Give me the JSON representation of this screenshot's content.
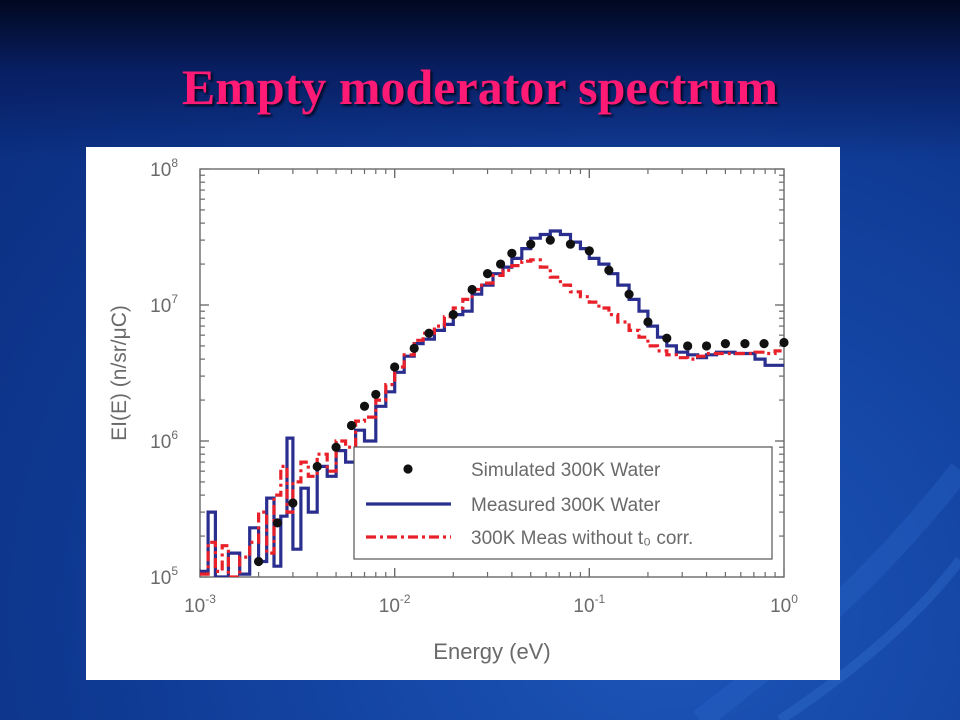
{
  "slide": {
    "title": "Empty moderator spectrum"
  },
  "colors": {
    "background": "#1445a4",
    "title": "#ff1a75",
    "simulated": "#111111",
    "measured": "#2a2f8f",
    "meas_no_corr": "#e8202a"
  },
  "chart_data": {
    "type": "line",
    "xlabel": "Energy (eV)",
    "ylabel": "EI(E) (n/sr/μC)",
    "xscale": "log",
    "yscale": "log",
    "xlim": [
      0.001,
      1
    ],
    "ylim": [
      100000,
      100000000
    ],
    "x_ticks": [
      {
        "base": "10",
        "exp": "-3"
      },
      {
        "base": "10",
        "exp": "-2"
      },
      {
        "base": "10",
        "exp": "-1"
      },
      {
        "base": "10",
        "exp": "0"
      }
    ],
    "y_ticks": [
      {
        "base": "10",
        "exp": "5"
      },
      {
        "base": "10",
        "exp": "6"
      },
      {
        "base": "10",
        "exp": "7"
      },
      {
        "base": "10",
        "exp": "8"
      }
    ],
    "legend_position": "bottom-right",
    "series": [
      {
        "name": "Simulated 300K Water",
        "style": "markers",
        "points": [
          [
            0.002,
            130000
          ],
          [
            0.0025,
            250000
          ],
          [
            0.003,
            350000
          ],
          [
            0.004,
            650000
          ],
          [
            0.005,
            900000
          ],
          [
            0.006,
            1300000
          ],
          [
            0.007,
            1800000
          ],
          [
            0.008,
            2200000
          ],
          [
            0.01,
            3500000
          ],
          [
            0.0126,
            4800000
          ],
          [
            0.015,
            6200000
          ],
          [
            0.02,
            8500000
          ],
          [
            0.025,
            13000000
          ],
          [
            0.03,
            17000000
          ],
          [
            0.035,
            20000000
          ],
          [
            0.04,
            24000000
          ],
          [
            0.05,
            28000000
          ],
          [
            0.063,
            30000000
          ],
          [
            0.08,
            28000000
          ],
          [
            0.1,
            25000000
          ],
          [
            0.126,
            18000000
          ],
          [
            0.16,
            12000000
          ],
          [
            0.2,
            7500000
          ],
          [
            0.25,
            5700000
          ],
          [
            0.32,
            5000000
          ],
          [
            0.4,
            5000000
          ],
          [
            0.5,
            5200000
          ],
          [
            0.63,
            5200000
          ],
          [
            0.79,
            5200000
          ],
          [
            1.0,
            5300000
          ]
        ]
      },
      {
        "name": "Measured 300K Water",
        "style": "step",
        "points": [
          [
            0.001,
            110000
          ],
          [
            0.0011,
            300000
          ],
          [
            0.0012,
            100000
          ],
          [
            0.0014,
            150000
          ],
          [
            0.0016,
            105000
          ],
          [
            0.0018,
            230000
          ],
          [
            0.002,
            130000
          ],
          [
            0.0022,
            380000
          ],
          [
            0.0024,
            120000
          ],
          [
            0.0026,
            280000
          ],
          [
            0.0028,
            1050000
          ],
          [
            0.003,
            160000
          ],
          [
            0.0033,
            450000
          ],
          [
            0.0036,
            300000
          ],
          [
            0.004,
            650000
          ],
          [
            0.0045,
            550000
          ],
          [
            0.005,
            850000
          ],
          [
            0.0056,
            700000
          ],
          [
            0.0063,
            1200000
          ],
          [
            0.007,
            1000000
          ],
          [
            0.008,
            1800000
          ],
          [
            0.009,
            2300000
          ],
          [
            0.01,
            3200000
          ],
          [
            0.0112,
            4200000
          ],
          [
            0.0126,
            5200000
          ],
          [
            0.014,
            5600000
          ],
          [
            0.016,
            6500000
          ],
          [
            0.018,
            7200000
          ],
          [
            0.02,
            8500000
          ],
          [
            0.0224,
            9000000
          ],
          [
            0.025,
            12000000
          ],
          [
            0.028,
            14000000
          ],
          [
            0.032,
            17000000
          ],
          [
            0.036,
            19000000
          ],
          [
            0.04,
            22000000
          ],
          [
            0.045,
            26000000
          ],
          [
            0.05,
            31000000
          ],
          [
            0.056,
            33000000
          ],
          [
            0.063,
            35000000
          ],
          [
            0.071,
            33000000
          ],
          [
            0.08,
            29000000
          ],
          [
            0.09,
            26000000
          ],
          [
            0.1,
            22000000
          ],
          [
            0.112,
            20000000
          ],
          [
            0.126,
            17000000
          ],
          [
            0.14,
            14000000
          ],
          [
            0.16,
            11000000
          ],
          [
            0.18,
            9000000
          ],
          [
            0.2,
            7000000
          ],
          [
            0.224,
            5800000
          ],
          [
            0.25,
            5000000
          ],
          [
            0.28,
            4500000
          ],
          [
            0.32,
            4300000
          ],
          [
            0.36,
            4100000
          ],
          [
            0.4,
            4300000
          ],
          [
            0.45,
            4500000
          ],
          [
            0.5,
            4500000
          ],
          [
            0.56,
            4400000
          ],
          [
            0.63,
            4400000
          ],
          [
            0.71,
            4000000
          ],
          [
            0.8,
            3600000
          ],
          [
            1.0,
            3600000
          ]
        ]
      },
      {
        "name": "300K Meas without t₀ corr.",
        "style": "dashdot-step",
        "points": [
          [
            0.001,
            105000
          ],
          [
            0.0011,
            180000
          ],
          [
            0.0012,
            110000
          ],
          [
            0.0013,
            170000
          ],
          [
            0.0014,
            100000
          ],
          [
            0.0016,
            140000
          ],
          [
            0.0018,
            180000
          ],
          [
            0.002,
            300000
          ],
          [
            0.0022,
            150000
          ],
          [
            0.0024,
            400000
          ],
          [
            0.0026,
            650000
          ],
          [
            0.0028,
            300000
          ],
          [
            0.003,
            500000
          ],
          [
            0.0033,
            700000
          ],
          [
            0.0036,
            550000
          ],
          [
            0.004,
            800000
          ],
          [
            0.0045,
            600000
          ],
          [
            0.005,
            1000000
          ],
          [
            0.0056,
            900000
          ],
          [
            0.0063,
            1400000
          ],
          [
            0.007,
            1500000
          ],
          [
            0.008,
            2000000
          ],
          [
            0.009,
            2600000
          ],
          [
            0.01,
            3500000
          ],
          [
            0.0112,
            4300000
          ],
          [
            0.0126,
            5500000
          ],
          [
            0.014,
            6200000
          ],
          [
            0.016,
            7000000
          ],
          [
            0.018,
            8200000
          ],
          [
            0.02,
            9500000
          ],
          [
            0.0224,
            11000000
          ],
          [
            0.025,
            13000000
          ],
          [
            0.028,
            14500000
          ],
          [
            0.032,
            16500000
          ],
          [
            0.036,
            18000000
          ],
          [
            0.04,
            19500000
          ],
          [
            0.045,
            21000000
          ],
          [
            0.05,
            21500000
          ],
          [
            0.056,
            19000000
          ],
          [
            0.063,
            16000000
          ],
          [
            0.071,
            14000000
          ],
          [
            0.08,
            12500000
          ],
          [
            0.09,
            11500000
          ],
          [
            0.1,
            10500000
          ],
          [
            0.112,
            9500000
          ],
          [
            0.126,
            8500000
          ],
          [
            0.14,
            7500000
          ],
          [
            0.16,
            6500000
          ],
          [
            0.18,
            5800000
          ],
          [
            0.2,
            5000000
          ],
          [
            0.224,
            4600000
          ],
          [
            0.25,
            4300000
          ],
          [
            0.28,
            4100000
          ],
          [
            0.32,
            4000000
          ],
          [
            0.36,
            4200000
          ],
          [
            0.4,
            4400000
          ],
          [
            0.45,
            4400000
          ],
          [
            0.5,
            4400000
          ],
          [
            0.56,
            4400000
          ],
          [
            0.63,
            4400000
          ],
          [
            0.71,
            4500000
          ],
          [
            0.8,
            4400000
          ],
          [
            0.9,
            4600000
          ],
          [
            1.0,
            4600000
          ]
        ]
      }
    ]
  }
}
